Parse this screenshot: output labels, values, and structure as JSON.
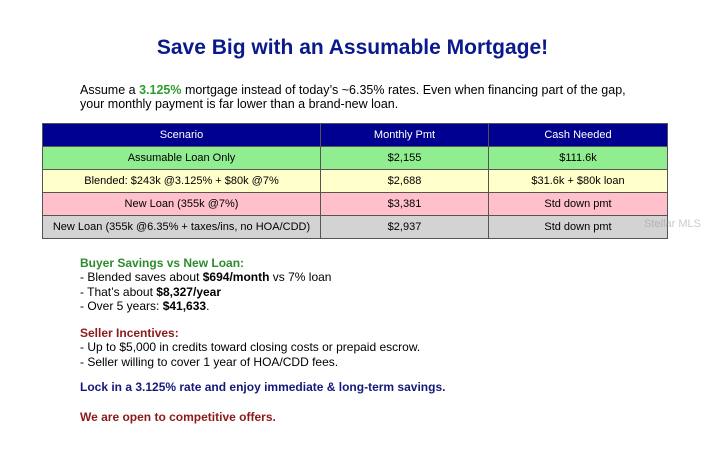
{
  "title": "Save Big with an Assumable Mortgage!",
  "intro": {
    "line1": {
      "before": "Assume a ",
      "rate": "3.125%",
      "after": " mortgage instead of today’s ~6.35% rates. Even when financing part of the gap,"
    },
    "line2": "your monthly payment is far lower than a brand-new loan."
  },
  "table": {
    "headers": [
      "Scenario",
      "Monthly Pmt",
      "Cash Needed"
    ],
    "rows": [
      [
        "Assumable Loan Only",
        "$2,155",
        "$111.6k"
      ],
      [
        "Blended: $243k @3.125% + $80k @7%",
        "$2,688",
        "$31.6k + $80k loan"
      ],
      [
        "New Loan (355k @7%)",
        "$3,381",
        "Std down pmt"
      ],
      [
        "New Loan (355k @6.35% + taxes/ins, no HOA/CDD)",
        "$2,937",
        "Std down pmt"
      ]
    ]
  },
  "buyer": {
    "heading": "Buyer Savings vs New Loan:",
    "items": [
      [
        "- Blended saves about ",
        "$694/month",
        " vs 7% loan"
      ],
      [
        "- That’s about ",
        "$8,327/year"
      ],
      [
        "- Over 5 years: ",
        "$41,633",
        "."
      ]
    ]
  },
  "seller": {
    "heading": "Seller Incentives:",
    "items": [
      "- Up to $5,000 in credits toward closing costs or prepaid escrow.",
      "- Seller willing to cover 1 year of HOA/CDD fees."
    ]
  },
  "lock": "Lock in a 3.125% rate and enjoy immediate & long-term savings.",
  "offers": "We are open to competitive offers.",
  "watermark": "Stellar MLS"
}
